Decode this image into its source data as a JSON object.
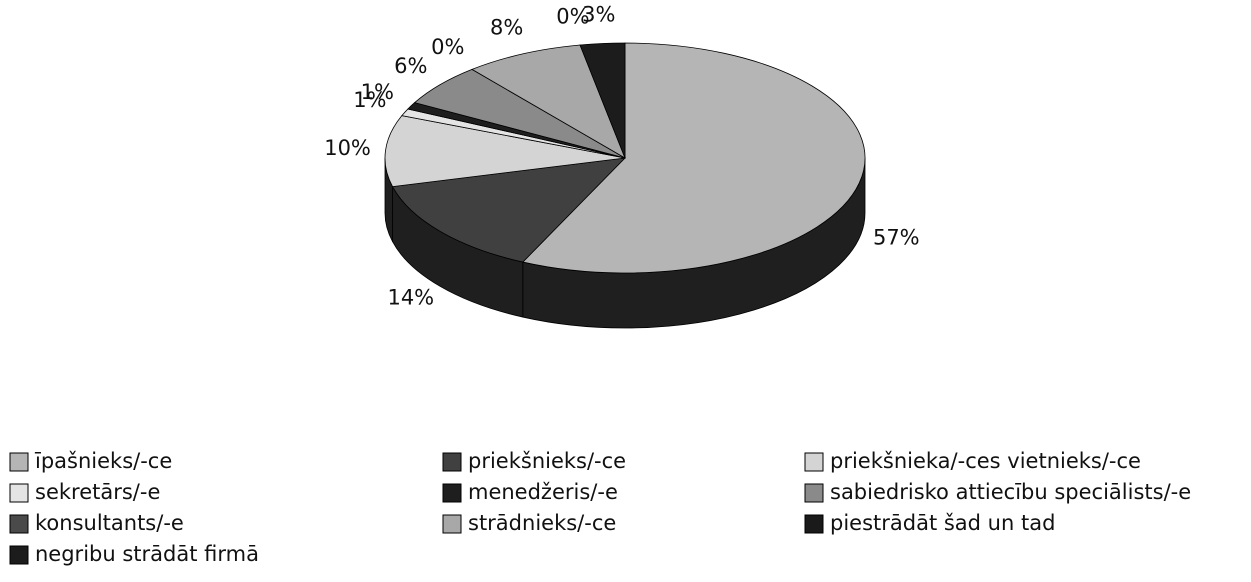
{
  "chart_data": {
    "type": "pie3d",
    "series": [
      {
        "name": "īpašnieks/-ce",
        "color": "#b5b5b5"
      },
      {
        "name": "priekšnieks/-ce",
        "color": "#404040"
      },
      {
        "name": "priekšnieka/-ces vietnieks/-ce",
        "color": "#d4d4d4"
      },
      {
        "name": "sekretārs/-e",
        "color": "#e4e4e4"
      },
      {
        "name": "menedžeris/-e",
        "color": "#1e1e1e"
      },
      {
        "name": "sabiedrisko attiecību speciālists/-e",
        "color": "#8a8a8a"
      },
      {
        "name": "konsultants/-e",
        "color": "#4a4a4a"
      },
      {
        "name": "strādnieks/-ce",
        "color": "#a8a8a8"
      },
      {
        "name": "piestrādāt šad un tad",
        "color": "#1a1a1a"
      },
      {
        "name": "negribu strādāt firmā",
        "color": "#1c1c1c"
      }
    ],
    "values": [
      57,
      14,
      10,
      1,
      1,
      6,
      0,
      8,
      0,
      3
    ],
    "value_labels": [
      "57%",
      "14%",
      "10%",
      "1%",
      "1%",
      "6%",
      "0%",
      "8%",
      "0%",
      "3%"
    ],
    "legend": "bottom"
  }
}
